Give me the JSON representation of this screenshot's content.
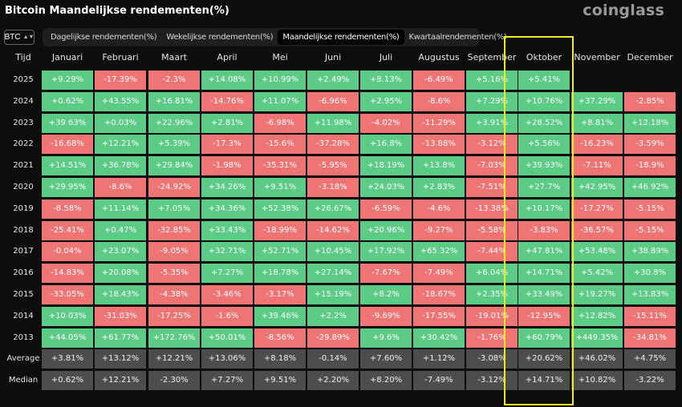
{
  "title": "Bitcoin Maandelijkse rendementen(%)",
  "logo": "coinglass",
  "asset_select": {
    "value": "BTC",
    "icon": "updown-arrows-icon"
  },
  "tabs": [
    {
      "label": "Dagelijkse rendementen(%)",
      "active": false
    },
    {
      "label": "Wekelijkse rendementen(%)",
      "active": false
    },
    {
      "label": "Maandelijkse rendementen(%)",
      "active": true
    },
    {
      "label": "Kwartaalrendementen(%)",
      "active": false
    }
  ],
  "table": {
    "year_header": "Tijd",
    "months": [
      "Januari",
      "Februari",
      "Maart",
      "April",
      "Mei",
      "Juni",
      "Juli",
      "Augustus",
      "September",
      "Oktober",
      "November",
      "December"
    ],
    "highlight_month": "Oktober",
    "colors": {
      "positive": "#5ccb85",
      "negative": "#ef7575",
      "stat": "#4d4d4d",
      "highlight": "#f3ee1b"
    },
    "rows": [
      {
        "year": "2025",
        "values": [
          "+9.29%",
          "-17.39%",
          "-2.3%",
          "+14.08%",
          "+10.99%",
          "+2.49%",
          "+8.13%",
          "-6.49%",
          "+5.16%",
          "+5.41%",
          "",
          ""
        ]
      },
      {
        "year": "2024",
        "values": [
          "+0.62%",
          "+43.55%",
          "+16.81%",
          "-14.76%",
          "+11.07%",
          "-6.96%",
          "+2.95%",
          "-8.6%",
          "+7.29%",
          "+10.76%",
          "+37.29%",
          "-2.85%"
        ]
      },
      {
        "year": "2023",
        "values": [
          "+39.63%",
          "+0.03%",
          "+22.96%",
          "+2.81%",
          "-6.98%",
          "+11.98%",
          "-4.02%",
          "-11.29%",
          "+3.91%",
          "+28.52%",
          "+8.81%",
          "+12.18%"
        ]
      },
      {
        "year": "2022",
        "values": [
          "-16.68%",
          "+12.21%",
          "+5.39%",
          "-17.3%",
          "-15.6%",
          "-37.28%",
          "+16.8%",
          "-13.88%",
          "-3.12%",
          "+5.56%",
          "-16.23%",
          "-3.59%"
        ]
      },
      {
        "year": "2021",
        "values": [
          "+14.51%",
          "+36.78%",
          "+29.84%",
          "-1.98%",
          "-35.31%",
          "-5.95%",
          "+18.19%",
          "+13.8%",
          "-7.03%",
          "+39.93%",
          "-7.11%",
          "-18.9%"
        ]
      },
      {
        "year": "2020",
        "values": [
          "+29.95%",
          "-8.6%",
          "-24.92%",
          "+34.26%",
          "+9.51%",
          "-3.18%",
          "+24.03%",
          "+2.83%",
          "-7.51%",
          "+27.7%",
          "+42.95%",
          "+46.92%"
        ]
      },
      {
        "year": "2019",
        "values": [
          "-8.58%",
          "+11.14%",
          "+7.05%",
          "+34.36%",
          "+52.38%",
          "+26.67%",
          "-6.59%",
          "-4.6%",
          "-13.38%",
          "+10.17%",
          "-17.27%",
          "-5.15%"
        ]
      },
      {
        "year": "2018",
        "values": [
          "-25.41%",
          "+0.47%",
          "-32.85%",
          "+33.43%",
          "-18.99%",
          "-14.62%",
          "+20.96%",
          "-9.27%",
          "-5.58%",
          "-3.83%",
          "-36.57%",
          "-5.15%"
        ]
      },
      {
        "year": "2017",
        "values": [
          "-0.04%",
          "+23.07%",
          "-9.05%",
          "+32.71%",
          "+52.71%",
          "+10.45%",
          "+17.92%",
          "+65.32%",
          "-7.44%",
          "+47.81%",
          "+53.48%",
          "+38.89%"
        ]
      },
      {
        "year": "2016",
        "values": [
          "-14.83%",
          "+20.08%",
          "-5.35%",
          "+7.27%",
          "+18.78%",
          "+27.14%",
          "-7.67%",
          "-7.49%",
          "+6.04%",
          "+14.71%",
          "+5.42%",
          "+30.8%"
        ]
      },
      {
        "year": "2015",
        "values": [
          "-33.05%",
          "+18.43%",
          "-4.38%",
          "-3.46%",
          "-3.17%",
          "+15.19%",
          "+8.2%",
          "-18.67%",
          "+2.35%",
          "+33.49%",
          "+19.27%",
          "+13.83%"
        ]
      },
      {
        "year": "2014",
        "values": [
          "+10.03%",
          "-31.03%",
          "-17.25%",
          "-1.6%",
          "+39.46%",
          "+2.2%",
          "-9.69%",
          "-17.55%",
          "-19.01%",
          "-12.95%",
          "+12.82%",
          "-15.11%"
        ]
      },
      {
        "year": "2013",
        "values": [
          "+44.05%",
          "+61.77%",
          "+172.76%",
          "+50.01%",
          "-8.56%",
          "-29.89%",
          "+9.6%",
          "+30.42%",
          "-1.76%",
          "+60.79%",
          "+449.35%",
          "-34.81%"
        ]
      }
    ],
    "stats": [
      {
        "label": "Average",
        "values": [
          "+3.81%",
          "+13.12%",
          "+12.21%",
          "+13.06%",
          "+8.18%",
          "-0.14%",
          "+7.60%",
          "+1.12%",
          "-3.08%",
          "+20.62%",
          "+46.02%",
          "+4.75%"
        ]
      },
      {
        "label": "Median",
        "values": [
          "+0.62%",
          "+12.21%",
          "-2.30%",
          "+7.27%",
          "+9.51%",
          "+2.20%",
          "+8.20%",
          "-7.49%",
          "-3.12%",
          "+14.71%",
          "+10.82%",
          "-3.22%"
        ]
      }
    ]
  }
}
